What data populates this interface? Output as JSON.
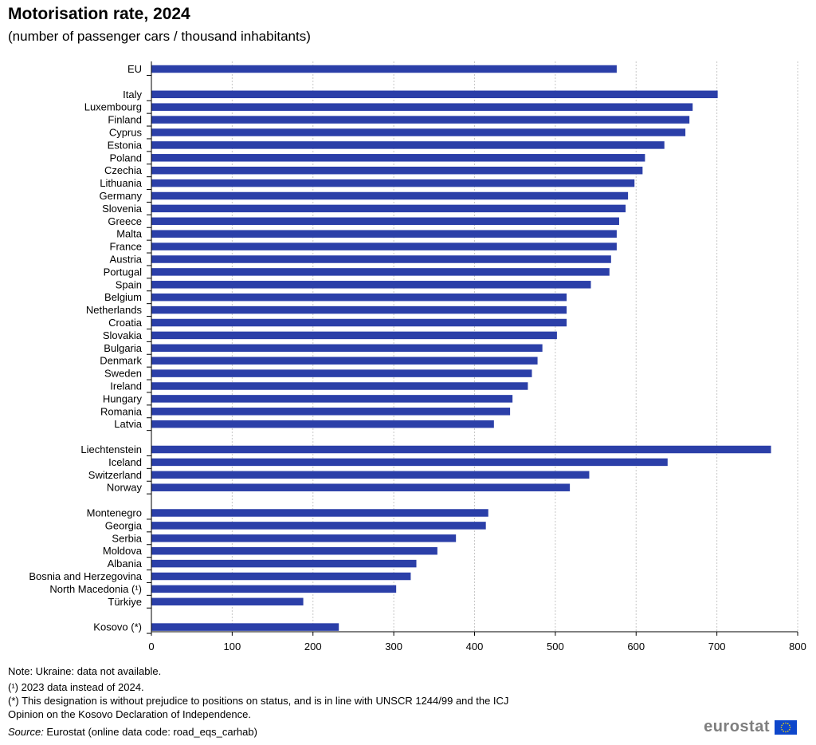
{
  "title": "Motorisation rate, 2024",
  "subtitle": "(number of passenger cars / thousand inhabitants)",
  "chart_data": {
    "type": "bar",
    "orientation": "horizontal",
    "bar_color": "#2b3fa8",
    "grid": true,
    "xlim": [
      0,
      800
    ],
    "xticks": [
      0,
      100,
      200,
      300,
      400,
      500,
      600,
      700,
      800
    ],
    "groups": [
      {
        "categories": [
          "EU"
        ],
        "values": [
          576
        ]
      },
      {
        "categories": [
          "Italy",
          "Luxembourg",
          "Finland",
          "Cyprus",
          "Estonia",
          "Poland",
          "Czechia",
          "Lithuania",
          "Germany",
          "Slovenia",
          "Greece",
          "Malta",
          "France",
          "Austria",
          "Portugal",
          "Spain",
          "Belgium",
          "Netherlands",
          "Croatia",
          "Slovakia",
          "Bulgaria",
          "Denmark",
          "Sweden",
          "Ireland",
          "Hungary",
          "Romania",
          "Latvia"
        ],
        "values": [
          701,
          670,
          666,
          661,
          635,
          611,
          608,
          598,
          590,
          587,
          579,
          576,
          576,
          569,
          567,
          544,
          514,
          514,
          514,
          502,
          484,
          478,
          471,
          466,
          447,
          444,
          424
        ]
      },
      {
        "categories": [
          "Liechtenstein",
          "Iceland",
          "Switzerland",
          "Norway"
        ],
        "values": [
          767,
          639,
          542,
          518
        ]
      },
      {
        "categories": [
          "Montenegro",
          "Georgia",
          "Serbia",
          "Moldova",
          "Albania",
          "Bosnia and Herzegovina",
          "North Macedonia (¹)",
          "Türkiye"
        ],
        "values": [
          417,
          414,
          377,
          354,
          328,
          321,
          303,
          188
        ]
      },
      {
        "categories": [
          "Kosovo (*)"
        ],
        "values": [
          232
        ]
      }
    ]
  },
  "notes": {
    "note1": "Note: Ukraine: data not available.",
    "note2": "(¹) 2023 data instead of 2024.",
    "note3": "(*) This designation is without prejudice to positions on status, and is in line with UNSCR 1244/99 and the ICJ",
    "note4": "Opinion on the Kosovo Declaration of Independence.",
    "source_label": "Source:",
    "source_text": " Eurostat (online data code: road_eqs_carhab)"
  },
  "logo": {
    "text": "eurostat",
    "flag_color": "#0e47cb",
    "star_color": "#ffdd00"
  }
}
